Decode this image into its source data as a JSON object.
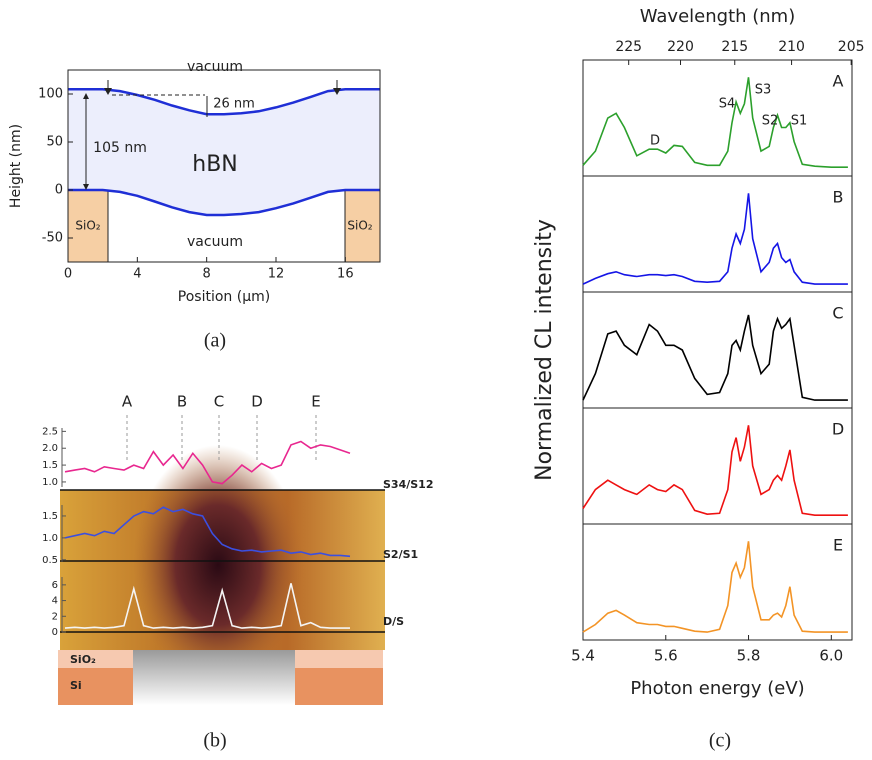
{
  "chart_data": [
    {
      "type": "line",
      "caption": "(a)",
      "xlabel": "Position (μm)",
      "ylabel": "Height (nm)",
      "xlim": [
        0,
        18
      ],
      "xticks": [
        0,
        4,
        8,
        12,
        16
      ],
      "ylim": [
        -75,
        125
      ],
      "yticks": [
        -50,
        0,
        50,
        100
      ],
      "x": [
        0,
        1,
        2,
        3,
        4,
        5,
        6,
        7,
        8,
        9,
        10,
        11,
        12,
        13,
        14,
        15,
        16,
        17,
        18
      ],
      "series": [
        {
          "color": "#1f2fd6",
          "values": [
            105,
            105,
            105,
            103,
            99,
            94,
            88,
            83,
            79,
            79,
            80,
            82,
            86,
            91,
            97,
            103,
            105,
            105,
            105
          ]
        },
        {
          "color": "#1f2fd6",
          "values": [
            0,
            0,
            0,
            -2,
            -6,
            -12,
            -18,
            -23,
            -26,
            -26,
            -25,
            -23,
            -19,
            -14,
            -8,
            -2,
            0,
            0,
            0
          ]
        }
      ],
      "annotations": [
        "vacuum",
        "26 nm",
        "105 nm",
        "hBN",
        "SiO₂",
        "SiO₂",
        "vacuum"
      ]
    },
    {
      "type": "line",
      "caption": "(b)",
      "markers": [
        "A",
        "B",
        "C",
        "D",
        "E"
      ],
      "annotations": [
        "SiO₂",
        "Si"
      ],
      "series": [
        {
          "name": "S34/S12",
          "color": "#e8278f",
          "ylim": [
            0.85,
            2.6
          ],
          "yticks": [
            {
              "value": 1,
              "label": "1.0"
            },
            1.5,
            {
              "value": 2,
              "label": "2.0"
            },
            2.5
          ],
          "values": [
            1.3,
            1.35,
            1.4,
            1.3,
            1.45,
            1.4,
            1.35,
            1.5,
            1.4,
            1.9,
            1.5,
            1.8,
            1.4,
            1.85,
            1.5,
            1.0,
            0.95,
            1.2,
            1.5,
            1.3,
            1.55,
            1.4,
            1.5,
            2.1,
            2.2,
            2.0,
            2.1,
            2.05,
            1.95,
            1.85
          ]
        },
        {
          "name": "S2/S1",
          "color": "#3b4fe0",
          "ylim": [
            0.45,
            1.75
          ],
          "yticks": [
            0.5,
            {
              "value": 1,
              "label": "1.0"
            },
            1.5
          ],
          "values": [
            1.0,
            1.05,
            1.1,
            1.05,
            1.15,
            1.1,
            1.3,
            1.5,
            1.6,
            1.55,
            1.7,
            1.6,
            1.65,
            1.55,
            1.5,
            1.1,
            0.85,
            0.75,
            0.7,
            0.72,
            0.68,
            0.7,
            0.72,
            0.65,
            0.68,
            0.62,
            0.65,
            0.6,
            0.6,
            0.58
          ]
        },
        {
          "name": "D/S",
          "color": "#f4f4f4",
          "ylim": [
            0,
            7
          ],
          "yticks": [
            0,
            2,
            4,
            6
          ],
          "values": [
            0.5,
            0.6,
            0.5,
            0.6,
            0.5,
            0.6,
            0.8,
            5.5,
            0.8,
            0.5,
            0.6,
            0.5,
            0.6,
            0.5,
            0.6,
            0.8,
            5.3,
            0.8,
            0.5,
            0.6,
            0.5,
            0.6,
            0.8,
            6.2,
            0.8,
            1.2,
            0.6,
            0.5,
            0.5,
            0.5
          ]
        }
      ]
    },
    {
      "type": "line",
      "caption": "(c)",
      "xlabel": "Photon energy (eV)",
      "x2label": "Wavelength (nm)",
      "ylabel": "Normalized CL intensity",
      "xlim": [
        5.4,
        6.05
      ],
      "xticks": [
        5.4,
        5.6,
        5.8,
        {
          "value": 6,
          "label": "6.0"
        }
      ],
      "x2ticks": [
        225,
        220,
        215,
        210,
        205
      ],
      "ylim": [
        0,
        1.1
      ],
      "annotations": [
        "D",
        "S4",
        "S3",
        "S2",
        "S1"
      ],
      "x": [
        5.4,
        5.43,
        5.46,
        5.48,
        5.5,
        5.53,
        5.56,
        5.58,
        5.6,
        5.62,
        5.64,
        5.67,
        5.7,
        5.73,
        5.75,
        5.76,
        5.77,
        5.78,
        5.79,
        5.8,
        5.81,
        5.83,
        5.85,
        5.86,
        5.87,
        5.88,
        5.89,
        5.9,
        5.91,
        5.93,
        5.96,
        6.0,
        6.04
      ],
      "series": [
        {
          "name": "A",
          "color": "#2ca02c",
          "values": [
            0.05,
            0.2,
            0.55,
            0.6,
            0.45,
            0.15,
            0.22,
            0.22,
            0.18,
            0.26,
            0.25,
            0.08,
            0.05,
            0.05,
            0.2,
            0.5,
            0.72,
            0.6,
            0.7,
            0.98,
            0.55,
            0.2,
            0.25,
            0.45,
            0.58,
            0.45,
            0.45,
            0.5,
            0.3,
            0.06,
            0.04,
            0.03,
            0.03
          ]
        },
        {
          "name": "B",
          "color": "#1515e6",
          "values": [
            0.02,
            0.08,
            0.13,
            0.15,
            0.12,
            0.1,
            0.12,
            0.12,
            0.11,
            0.12,
            0.1,
            0.05,
            0.04,
            0.05,
            0.15,
            0.4,
            0.55,
            0.45,
            0.6,
            0.98,
            0.5,
            0.15,
            0.25,
            0.4,
            0.45,
            0.3,
            0.25,
            0.28,
            0.15,
            0.04,
            0.02,
            0.02,
            0.02
          ]
        },
        {
          "name": "C",
          "color": "#000000",
          "values": [
            0.02,
            0.3,
            0.72,
            0.75,
            0.6,
            0.5,
            0.82,
            0.75,
            0.6,
            0.6,
            0.55,
            0.25,
            0.08,
            0.1,
            0.3,
            0.6,
            0.65,
            0.55,
            0.75,
            0.92,
            0.6,
            0.3,
            0.4,
            0.75,
            0.88,
            0.78,
            0.82,
            0.88,
            0.6,
            0.05,
            0.02,
            0.02,
            0.02
          ]
        },
        {
          "name": "D",
          "color": "#ee1111",
          "values": [
            0.1,
            0.3,
            0.4,
            0.35,
            0.3,
            0.25,
            0.35,
            0.3,
            0.28,
            0.35,
            0.3,
            0.08,
            0.04,
            0.05,
            0.3,
            0.7,
            0.85,
            0.6,
            0.75,
            0.98,
            0.55,
            0.25,
            0.3,
            0.4,
            0.45,
            0.4,
            0.55,
            0.72,
            0.4,
            0.05,
            0.03,
            0.03,
            0.03
          ]
        },
        {
          "name": "E",
          "color": "#f39426",
          "values": [
            0.02,
            0.1,
            0.22,
            0.25,
            0.2,
            0.12,
            0.1,
            0.1,
            0.08,
            0.08,
            0.06,
            0.03,
            0.02,
            0.05,
            0.3,
            0.65,
            0.75,
            0.6,
            0.7,
            0.98,
            0.5,
            0.15,
            0.15,
            0.2,
            0.22,
            0.18,
            0.3,
            0.5,
            0.2,
            0.03,
            0.02,
            0.02,
            0.02
          ]
        }
      ]
    }
  ]
}
